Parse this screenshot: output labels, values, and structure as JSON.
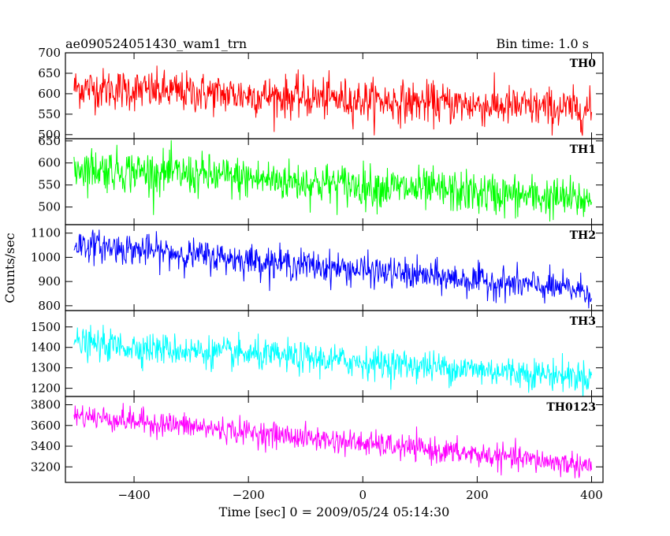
{
  "header": {
    "object_name": "ae090524051430_wam1_trn",
    "bin_time": "Bin time: 1.0 s"
  },
  "xlabel": "Time [sec] 0 = 2009/05/24 05:14:30",
  "ylabel": "Counts/sec",
  "chart_data": {
    "type": "line",
    "title": "ae090524051430_wam1_trn",
    "subtitle": "Bin time: 1.0 s",
    "xlabel": "Time [sec] 0 = 2009/05/24 05:14:30",
    "ylabel": "Counts/sec",
    "xlim": [
      -520,
      420
    ],
    "x_range": [
      -505,
      400
    ],
    "x_ticks": [
      -400,
      -200,
      0,
      200,
      400
    ],
    "x_tick_labels": [
      "−400",
      "−200",
      "0",
      "200",
      "400"
    ],
    "grid": false,
    "panels": [
      {
        "name": "TH0",
        "color": "#ff0000",
        "ylim": [
          490,
          700
        ],
        "y_ticks": [
          500,
          550,
          600,
          650,
          700
        ],
        "trend_start": 615,
        "trend_end": 560,
        "noise_sd": 25
      },
      {
        "name": "TH1",
        "color": "#00ff00",
        "ylim": [
          460,
          655
        ],
        "y_ticks": [
          500,
          550,
          600,
          650
        ],
        "trend_start": 590,
        "trend_end": 515,
        "noise_sd": 24
      },
      {
        "name": "TH2",
        "color": "#0000ff",
        "ylim": [
          780,
          1135
        ],
        "y_ticks": [
          800,
          900,
          1000,
          1100
        ],
        "trend_start": 1055,
        "trend_end": 860,
        "noise_sd": 32
      },
      {
        "name": "TH3",
        "color": "#00ffff",
        "ylim": [
          1160,
          1580
        ],
        "y_ticks": [
          1200,
          1300,
          1400,
          1500
        ],
        "trend_start": 1420,
        "trend_end": 1255,
        "noise_sd": 38
      },
      {
        "name": "TH0123",
        "color": "#ff00ff",
        "ylim": [
          3050,
          3880
        ],
        "y_ticks": [
          3200,
          3400,
          3600,
          3800
        ],
        "trend_start": 3700,
        "trend_end": 3210,
        "noise_sd": 60
      }
    ]
  }
}
